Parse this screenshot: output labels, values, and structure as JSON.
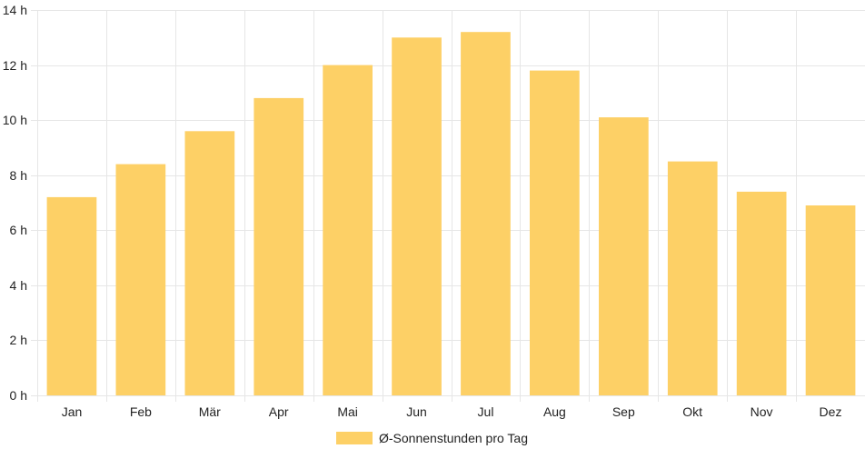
{
  "chart_data": {
    "type": "bar",
    "categories": [
      "Jan",
      "Feb",
      "Mär",
      "Apr",
      "Mai",
      "Jun",
      "Jul",
      "Aug",
      "Sep",
      "Okt",
      "Nov",
      "Dez"
    ],
    "series": [
      {
        "name": "Ø-Sonnenstunden pro Tag",
        "values": [
          7.2,
          8.4,
          9.6,
          10.8,
          12.0,
          13.0,
          13.2,
          11.8,
          10.1,
          8.5,
          7.4,
          6.9
        ],
        "color": "#fdd066"
      }
    ],
    "ylim": [
      0,
      14
    ],
    "yticks": [
      0,
      2,
      4,
      6,
      8,
      10,
      12,
      14
    ],
    "ytick_suffix": " h",
    "grid": true,
    "legend_position": "bottom",
    "grid_color": "#e6e6e6"
  }
}
